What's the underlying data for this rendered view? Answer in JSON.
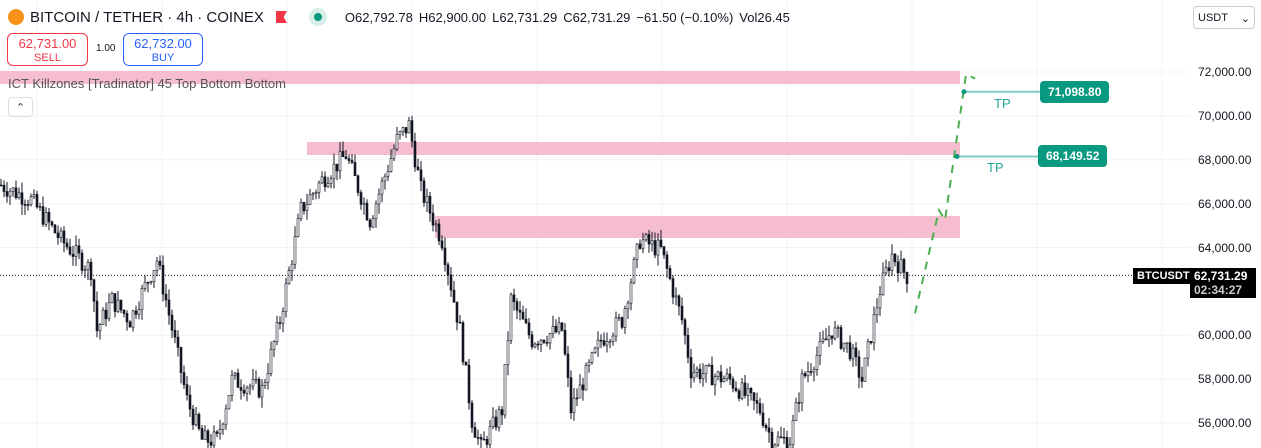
{
  "header": {
    "title": "BITCOIN / TETHER · 4h · COINEX",
    "open": "O62,792.78",
    "high": "H62,900.00",
    "low": "L62,731.29",
    "close": "C62,731.29",
    "change": "−61.50 (−0.10%)",
    "volume": "Vol26.45"
  },
  "trade": {
    "sell_price": "62,731.00",
    "sell_label": "SELL",
    "quantity": "1.00",
    "buy_price": "62,732.00",
    "buy_label": "BUY"
  },
  "indicator": {
    "label": "ICT Killzones [Tradinator] 45 Top Bottom Bottom",
    "collapse_icon": "chevron-up-icon"
  },
  "currency": {
    "selected": "USDT"
  },
  "colors": {
    "zone": "#f6bcd0",
    "tp": "#089981",
    "path": "#4caf50",
    "candle": "#131722"
  },
  "chart_data": {
    "type": "candlestick",
    "symbol": "BTCUSDT",
    "last_price": "62,731.29",
    "countdown": "02:34:27",
    "ylim": [
      54500,
      73500
    ],
    "y_ticks": [
      "72,000.00",
      "70,000.00",
      "68,000.00",
      "66,000.00",
      "64,000.00",
      "60,000.00",
      "58,000.00",
      "56,000.00"
    ],
    "y_tick_values": [
      72000,
      70000,
      68000,
      66000,
      64000,
      60000,
      58000,
      56000
    ],
    "price_path": [
      [
        0,
        66849
      ],
      [
        10,
        66166
      ],
      [
        20,
        64343
      ],
      [
        30,
        62976
      ],
      [
        32,
        60241
      ],
      [
        37,
        61608
      ],
      [
        43,
        60697
      ],
      [
        52,
        63431
      ],
      [
        55,
        61608
      ],
      [
        62,
        57050
      ],
      [
        67,
        55227
      ],
      [
        72,
        55227
      ],
      [
        77,
        57962
      ],
      [
        87,
        57506
      ],
      [
        93,
        60697
      ],
      [
        100,
        65710
      ],
      [
        107,
        67077
      ],
      [
        115,
        68217
      ],
      [
        123,
        65254
      ],
      [
        132,
        68900
      ],
      [
        136,
        69584
      ],
      [
        140,
        66621
      ],
      [
        147,
        64343
      ],
      [
        153,
        60241
      ],
      [
        157,
        56138
      ],
      [
        160,
        54862
      ],
      [
        167,
        56594
      ],
      [
        170,
        61608
      ],
      [
        177,
        59785
      ],
      [
        187,
        60241
      ],
      [
        190,
        56594
      ],
      [
        200,
        59785
      ],
      [
        207,
        60697
      ],
      [
        213,
        64343
      ],
      [
        220,
        63887
      ],
      [
        227,
        60697
      ],
      [
        230,
        58417
      ],
      [
        243,
        57962
      ],
      [
        253,
        56594
      ],
      [
        257,
        55227
      ],
      [
        263,
        55227
      ],
      [
        267,
        57962
      ],
      [
        277,
        60241
      ],
      [
        283,
        59329
      ],
      [
        287,
        57962
      ],
      [
        293,
        62064
      ],
      [
        297,
        63659
      ],
      [
        303,
        62520
      ]
    ],
    "zones": [
      {
        "from": 72046,
        "to": 71453
      },
      {
        "from": 68809,
        "to": 68217
      },
      {
        "from": 65437,
        "to": 64434
      }
    ],
    "targets": [
      {
        "label": "TP",
        "value": "71,098.80",
        "price": 71098.8
      },
      {
        "label": "TP",
        "value": "68,149.52",
        "price": 68149.52
      }
    ],
    "projection": [
      [
        305,
        61000
      ],
      [
        313,
        65700
      ],
      [
        315,
        65250
      ],
      [
        322,
        71900
      ],
      [
        325,
        71700
      ]
    ]
  }
}
